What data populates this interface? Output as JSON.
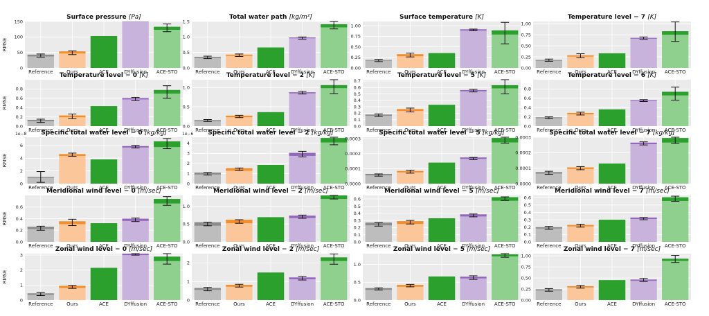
{
  "chart_data": {
    "type": "bar",
    "categories": [
      "Reference",
      "Ours",
      "ACE",
      "DYffusion",
      "ACE-STO"
    ],
    "ylabel": "RMSE",
    "colors": {
      "Reference": {
        "light": "#bdbdbd",
        "dark": "#8c8c8c"
      },
      "Ours": {
        "light": "#fbc79a",
        "dark": "#f28e2b"
      },
      "ACE": {
        "light": "#2ca02c",
        "dark": "#2ca02c"
      },
      "DYffusion": {
        "light": "#c8b3dd",
        "dark": "#9467bd"
      },
      "ACE-STO": {
        "light": "#8fd08f",
        "dark": "#2ca02c"
      }
    },
    "panels": [
      {
        "title": "Surface pressure",
        "unit": "[Pa]",
        "ylim": [
          0,
          150
        ],
        "yticks": [
          "0",
          "50",
          "100",
          "150"
        ],
        "offset": "",
        "mean": [
          40,
          50,
          103,
          150,
          128
        ],
        "lo": [
          35,
          43,
          103,
          150,
          117
        ],
        "hi": [
          45,
          55,
          103,
          150,
          142
        ],
        "band": [
          6,
          7,
          0,
          2,
          10
        ]
      },
      {
        "title": "Total water path",
        "unit": "[kg/m²]",
        "ylim": [
          0,
          1.5
        ],
        "yticks": [
          "0.0",
          "0.5",
          "1.0",
          "1.5"
        ],
        "offset": "",
        "mean": [
          0.34,
          0.41,
          0.66,
          0.97,
          1.36
        ],
        "lo": [
          0.3,
          0.37,
          0.66,
          0.93,
          1.26
        ],
        "hi": [
          0.38,
          0.45,
          0.66,
          1.0,
          1.5
        ],
        "band": [
          0.04,
          0.04,
          0,
          0.03,
          0.1
        ]
      },
      {
        "title": "Surface temperature",
        "unit": "[K]",
        "ylim": [
          0,
          1.1
        ],
        "yticks": [
          "0.00",
          "0.25",
          "0.50",
          "0.75",
          "1.00"
        ],
        "offset": "",
        "mean": [
          0.18,
          0.3,
          0.35,
          0.9,
          0.84
        ],
        "lo": [
          0.15,
          0.26,
          0.35,
          0.88,
          0.57
        ],
        "hi": [
          0.2,
          0.35,
          0.35,
          0.92,
          1.08
        ],
        "band": [
          0.02,
          0.05,
          0,
          0.03,
          0.1
        ]
      },
      {
        "title": "Temperature level − 7",
        "unit": "[K]",
        "ylim": [
          0,
          1.05
        ],
        "yticks": [
          "0.00",
          "0.25",
          "0.50",
          "0.75",
          "1.00"
        ],
        "offset": "",
        "mean": [
          0.17,
          0.27,
          0.33,
          0.67,
          0.79
        ],
        "lo": [
          0.15,
          0.23,
          0.33,
          0.65,
          0.6
        ],
        "hi": [
          0.2,
          0.32,
          0.33,
          0.7,
          1.04
        ],
        "band": [
          0.02,
          0.03,
          0,
          0.02,
          0.08
        ]
      },
      {
        "title": "Temperature level − 0",
        "unit": "[K]",
        "ylim": [
          0,
          1.0
        ],
        "yticks": [
          "0.0",
          "0.2",
          "0.4",
          "0.6",
          "0.8"
        ],
        "offset": "",
        "mean": [
          0.12,
          0.21,
          0.43,
          0.59,
          0.74
        ],
        "lo": [
          0.08,
          0.16,
          0.43,
          0.55,
          0.6
        ],
        "hi": [
          0.15,
          0.26,
          0.43,
          0.62,
          0.87
        ],
        "band": [
          0.03,
          0.04,
          0,
          0.03,
          0.08
        ]
      },
      {
        "title": "Temperature level − 2",
        "unit": "[K]",
        "ylim": [
          0,
          1.2
        ],
        "yticks": [
          "0.0",
          "0.5",
          "1.0"
        ],
        "offset": "",
        "mean": [
          0.14,
          0.25,
          0.36,
          0.86,
          1.02
        ],
        "lo": [
          0.12,
          0.22,
          0.36,
          0.83,
          0.84
        ],
        "hi": [
          0.17,
          0.28,
          0.36,
          0.9,
          1.2
        ],
        "band": [
          0.03,
          0.04,
          0,
          0.03,
          0.08
        ]
      },
      {
        "title": "Temperature level − 5",
        "unit": "[K]",
        "ylim": [
          0,
          0.72
        ],
        "yticks": [
          "0.0",
          "0.1",
          "0.2",
          "0.3",
          "0.4",
          "0.5",
          "0.6",
          "0.7"
        ],
        "offset": "",
        "mean": [
          0.17,
          0.25,
          0.33,
          0.55,
          0.61
        ],
        "lo": [
          0.15,
          0.22,
          0.33,
          0.53,
          0.5
        ],
        "hi": [
          0.19,
          0.28,
          0.33,
          0.57,
          0.72
        ],
        "band": [
          0.02,
          0.03,
          0,
          0.02,
          0.05
        ]
      },
      {
        "title": "Temperature level − 6",
        "unit": "[K]",
        "ylim": [
          0,
          1.0
        ],
        "yticks": [
          "0.0",
          "0.2",
          "0.4",
          "0.6",
          "0.8"
        ],
        "offset": "",
        "mean": [
          0.18,
          0.27,
          0.36,
          0.55,
          0.7
        ],
        "lo": [
          0.16,
          0.24,
          0.36,
          0.53,
          0.56
        ],
        "hi": [
          0.2,
          0.3,
          0.36,
          0.57,
          0.84
        ],
        "band": [
          0.02,
          0.03,
          0,
          0.02,
          0.08
        ]
      },
      {
        "title": "Specific total water level − 0",
        "unit": "[kg/kg]",
        "ylim": [
          0,
          7.3
        ],
        "yticks": [
          "0",
          "2",
          "4",
          "6"
        ],
        "offset": "1e−8",
        "mean": [
          1.0,
          4.5,
          3.8,
          5.8,
          6.2
        ],
        "lo": [
          0.2,
          4.3,
          3.8,
          5.6,
          5.5
        ],
        "hi": [
          1.9,
          4.8,
          3.8,
          6.0,
          7.1
        ],
        "band": [
          0.15,
          0.3,
          0,
          0.25,
          0.9
        ]
      },
      {
        "title": "Specific total water level − 2",
        "unit": "[kg/kg]",
        "ylim": [
          0,
          4.6
        ],
        "yticks": [
          "0",
          "1",
          "2",
          "3",
          "4"
        ],
        "offset": "1e−6",
        "mean": [
          1.0,
          1.4,
          1.85,
          2.9,
          4.3
        ],
        "lo": [
          0.85,
          1.3,
          1.85,
          2.65,
          3.85
        ],
        "hi": [
          1.1,
          1.55,
          1.85,
          3.2,
          4.6
        ],
        "band": [
          0.2,
          0.25,
          0,
          0.3,
          0.45
        ]
      },
      {
        "title": "Specific total water level − 5",
        "unit": "[kg/kg]",
        "ylim": [
          0,
          0.00031
        ],
        "yticks": [
          "0.0000",
          "0.0001",
          "0.0002",
          "0.0003"
        ],
        "offset": "",
        "mean": [
          6e-05,
          8e-05,
          0.00014,
          0.00017,
          0.00029
        ],
        "lo": [
          5e-05,
          7e-05,
          0.00014,
          0.00016,
          0.00027
        ],
        "hi": [
          6.5e-05,
          9e-05,
          0.00014,
          0.000175,
          0.00031
        ],
        "band": [
          1e-05,
          1e-05,
          0,
          1e-05,
          3e-05
        ]
      },
      {
        "title": "Specific total water level − 7",
        "unit": "[kg/kg]",
        "ylim": [
          0,
          0.0003
        ],
        "yticks": [
          "0.0000",
          "0.0001",
          "0.0002",
          "0.0003"
        ],
        "offset": "",
        "mean": [
          7e-05,
          0.0001,
          0.00013,
          0.00026,
          0.00028
        ],
        "lo": [
          6e-05,
          9e-05,
          0.00013,
          0.00025,
          0.00026
        ],
        "hi": [
          8e-05,
          0.00011,
          0.00013,
          0.00027,
          0.0003
        ],
        "band": [
          1e-05,
          1e-05,
          0,
          1e-05,
          3e-05
        ]
      },
      {
        "title": "Meridional wind level − 0",
        "unit": "[m/sec]",
        "ylim": [
          0,
          0.8
        ],
        "yticks": [
          "0.0",
          "0.2",
          "0.4",
          "0.6"
        ],
        "offset": "",
        "mean": [
          0.24,
          0.33,
          0.32,
          0.38,
          0.7
        ],
        "lo": [
          0.2,
          0.28,
          0.32,
          0.35,
          0.63
        ],
        "hi": [
          0.27,
          0.39,
          0.32,
          0.41,
          0.78
        ],
        "band": [
          0.04,
          0.05,
          0,
          0.04,
          0.08
        ]
      },
      {
        "title": "Meridional wind level − 2",
        "unit": "[m/sec]",
        "ylim": [
          0,
          1.3
        ],
        "yticks": [
          "0.0",
          "0.5",
          "1.0"
        ],
        "offset": "",
        "mean": [
          0.5,
          0.57,
          0.69,
          0.7,
          1.25
        ],
        "lo": [
          0.45,
          0.52,
          0.69,
          0.66,
          1.2
        ],
        "hi": [
          0.55,
          0.62,
          0.69,
          0.75,
          1.3
        ],
        "band": [
          0.1,
          0.1,
          0,
          0.07,
          0.1
        ]
      },
      {
        "title": "Meridional wind level − 5",
        "unit": "[m/sec]",
        "ylim": [
          0,
          0.65
        ],
        "yticks": [
          "0.0",
          "0.1",
          "0.2",
          "0.3",
          "0.4",
          "0.5",
          "0.6"
        ],
        "offset": "",
        "mean": [
          0.25,
          0.27,
          0.33,
          0.37,
          0.6
        ],
        "lo": [
          0.22,
          0.25,
          0.33,
          0.35,
          0.58
        ],
        "hi": [
          0.27,
          0.3,
          0.33,
          0.39,
          0.63
        ],
        "band": [
          0.04,
          0.04,
          0,
          0.03,
          0.05
        ]
      },
      {
        "title": "Meridional wind level − 7",
        "unit": "[m/sec]",
        "ylim": [
          0,
          0.63
        ],
        "yticks": [
          "0.0",
          "0.1",
          "0.2",
          "0.3",
          "0.4",
          "0.5",
          "0.6"
        ],
        "offset": "",
        "mean": [
          0.19,
          0.22,
          0.3,
          0.32,
          0.58
        ],
        "lo": [
          0.17,
          0.2,
          0.3,
          0.3,
          0.55
        ],
        "hi": [
          0.21,
          0.24,
          0.3,
          0.33,
          0.62
        ],
        "band": [
          0.02,
          0.02,
          0,
          0.02,
          0.05
        ]
      },
      {
        "title": "Zonal wind level − 0",
        "unit": "[m/sec]",
        "ylim": [
          0,
          3.1
        ],
        "yticks": [
          "0",
          "1",
          "2",
          "3"
        ],
        "offset": "",
        "mean": [
          0.4,
          0.88,
          2.15,
          3.05,
          2.75
        ],
        "lo": [
          0.3,
          0.78,
          2.15,
          3.0,
          2.4
        ],
        "hi": [
          0.5,
          0.98,
          2.15,
          3.1,
          3.1
        ],
        "band": [
          0.1,
          0.15,
          0,
          0.1,
          0.3
        ]
      },
      {
        "title": "Zonal wind level − 2",
        "unit": "[m/sec]",
        "ylim": [
          0,
          2.5
        ],
        "yticks": [
          "0",
          "1",
          "2"
        ],
        "offset": "",
        "mean": [
          0.6,
          0.77,
          1.48,
          1.17,
          2.2
        ],
        "lo": [
          0.5,
          0.7,
          1.48,
          1.08,
          1.93
        ],
        "hi": [
          0.68,
          0.85,
          1.48,
          1.27,
          2.48
        ],
        "band": [
          0.1,
          0.1,
          0,
          0.1,
          0.2
        ]
      },
      {
        "title": "Zonal wind level − 5",
        "unit": "[m/sec]",
        "ylim": [
          0,
          1.3
        ],
        "yticks": [
          "0.0",
          "0.5",
          "1.0"
        ],
        "offset": "",
        "mean": [
          0.31,
          0.4,
          0.66,
          0.63,
          1.25
        ],
        "lo": [
          0.28,
          0.37,
          0.66,
          0.58,
          1.2
        ],
        "hi": [
          0.34,
          0.44,
          0.66,
          0.68,
          1.3
        ],
        "band": [
          0.05,
          0.05,
          0,
          0.05,
          0.06
        ]
      },
      {
        "title": "Zonal wind level − 7",
        "unit": "[m/sec]",
        "ylim": [
          0,
          1.05
        ],
        "yticks": [
          "0.00",
          "0.25",
          "0.50",
          "0.75",
          "1.00"
        ],
        "offset": "",
        "mean": [
          0.23,
          0.3,
          0.45,
          0.45,
          0.91
        ],
        "lo": [
          0.2,
          0.27,
          0.45,
          0.42,
          0.85
        ],
        "hi": [
          0.26,
          0.33,
          0.45,
          0.49,
          1.01
        ],
        "band": [
          0.03,
          0.03,
          0,
          0.03,
          0.05
        ]
      }
    ]
  }
}
